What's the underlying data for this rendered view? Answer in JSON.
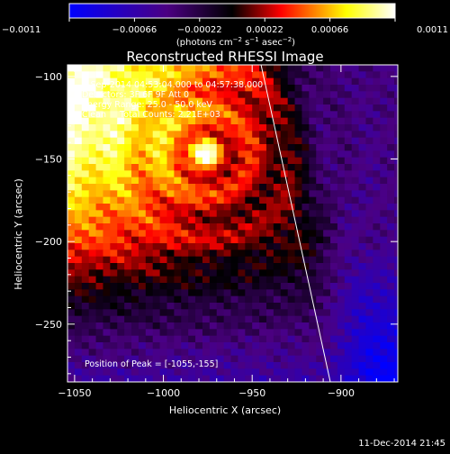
{
  "chart_data": {
    "type": "heatmap",
    "title": "Reconstructed RHESSI Image",
    "xlabel": "Heliocentric X (arcsec)",
    "ylabel": "Heliocentric Y (arcsec)",
    "xlim": [
      -1054,
      -868
    ],
    "ylim": [
      -285,
      -93
    ],
    "x_ticks": [
      -1050,
      -1000,
      -950,
      -900
    ],
    "y_ticks": [
      -100,
      -150,
      -200,
      -250
    ],
    "x_tick_labels": [
      "−1050",
      "−1000",
      "−950",
      "−900"
    ],
    "y_tick_labels": [
      "−100",
      "−150",
      "−200",
      "−250"
    ],
    "colorbar": {
      "min": -0.0011,
      "max": 0.0011,
      "ticks": [
        -0.0011,
        -0.00066,
        -0.00022,
        0.00022,
        0.00066,
        0.0011
      ],
      "tick_labels": [
        "−0.0011",
        "−0.00066",
        "−0.00022",
        "0.00022",
        "0.00066",
        "0.0011"
      ],
      "colors": [
        "#0000ff",
        "#4b0082",
        "#000000",
        "#ff0000",
        "#ffff00",
        "#ffffff"
      ]
    },
    "annotations": [
      "3-Sep-2014 04:53:04.000 to 04:57:38.000",
      "Detectors: 3F 6F 9F  Att 0",
      "Energy Range: 25.0 - 50.0 keV",
      "Clean     Total Counts: 2.21E+03"
    ],
    "peak_label": "Position of Peak = [-1055,-155]",
    "peak": [
      -1055,
      -155
    ],
    "secondary_source": [
      -976,
      -147
    ],
    "limb": [
      [
        -945,
        -93
      ],
      [
        -906,
        -285
      ]
    ]
  },
  "footer": {
    "timestamp": "11-Dec-2014 21:45"
  }
}
